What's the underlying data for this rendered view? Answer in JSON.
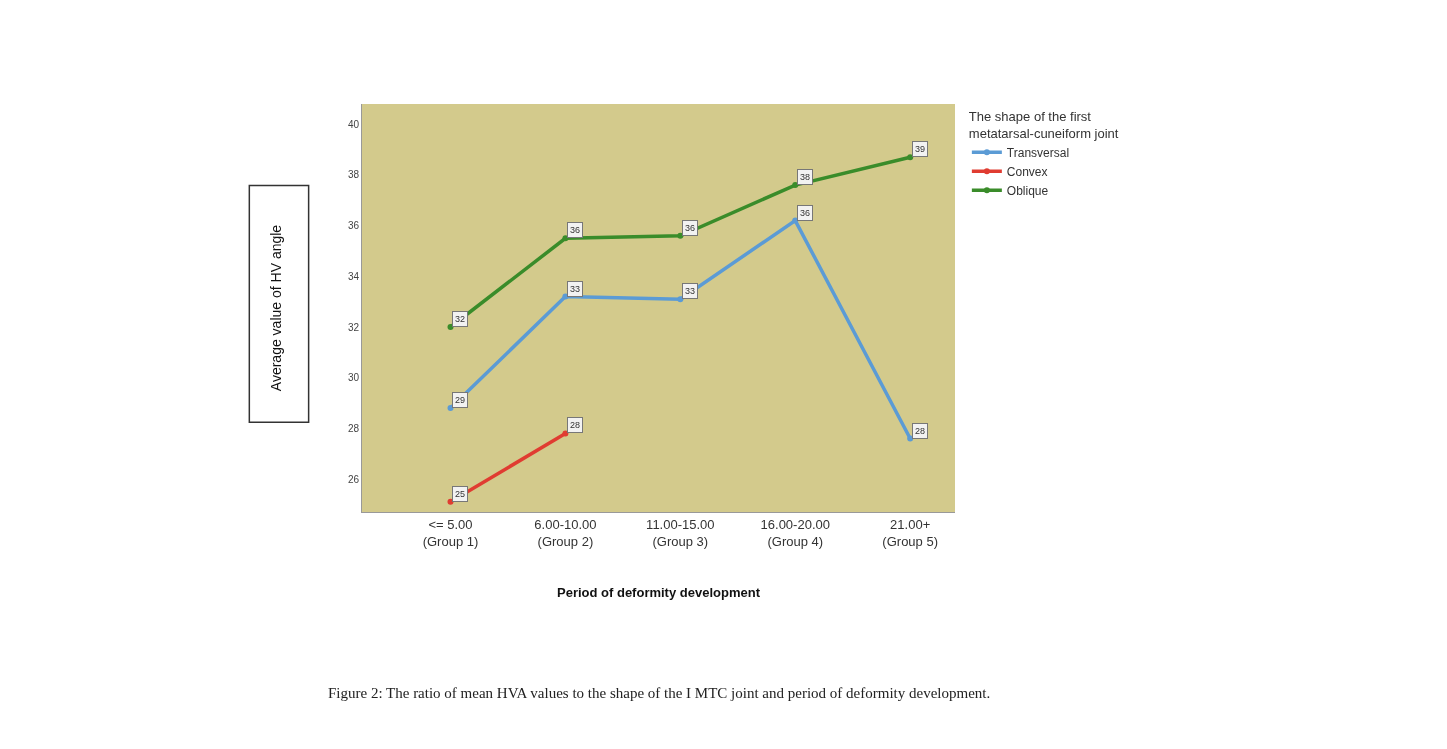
{
  "chart_data": {
    "type": "line",
    "xlabel": "Period of deformity development",
    "ylabel": "Average value of HV angle",
    "legend_title": "The shape of the first\nmetatarsal-cuneiform joint",
    "categories": [
      "<= 5.00\n(Group 1)",
      "6.00-10.00\n(Group 2)",
      "11.00-15.00\n(Group 3)",
      "16.00-20.00\n(Group 4)",
      "21.00+\n(Group 5)"
    ],
    "series": [
      {
        "name": "Transversal",
        "color": "#5b9bd5",
        "values": [
          28.8,
          33.2,
          33.1,
          36.2,
          27.6
        ],
        "value_labels": [
          "29",
          "33",
          "33",
          "36",
          "28"
        ]
      },
      {
        "name": "Convex",
        "color": "#e03c31",
        "values": [
          25.1,
          27.8,
          null,
          null,
          null
        ],
        "value_labels": [
          "25",
          "28",
          null,
          null,
          null
        ]
      },
      {
        "name": "Oblique",
        "color": "#3a8c2a",
        "values": [
          32,
          35.5,
          35.6,
          37.6,
          38.7
        ],
        "value_labels": [
          "32",
          "36",
          "36",
          "38",
          "39"
        ]
      }
    ],
    "ylim": [
      24.7,
      40.8
    ],
    "yticks": [
      26,
      28,
      30,
      32,
      34,
      36,
      38,
      40
    ],
    "grid": false,
    "legend": "top right",
    "marker": "circle",
    "line_style": "solid",
    "annotations": [
      "Figure 2: The ratio of mean HVA values to the shape of the I MTC joint and period of deformity development."
    ]
  }
}
